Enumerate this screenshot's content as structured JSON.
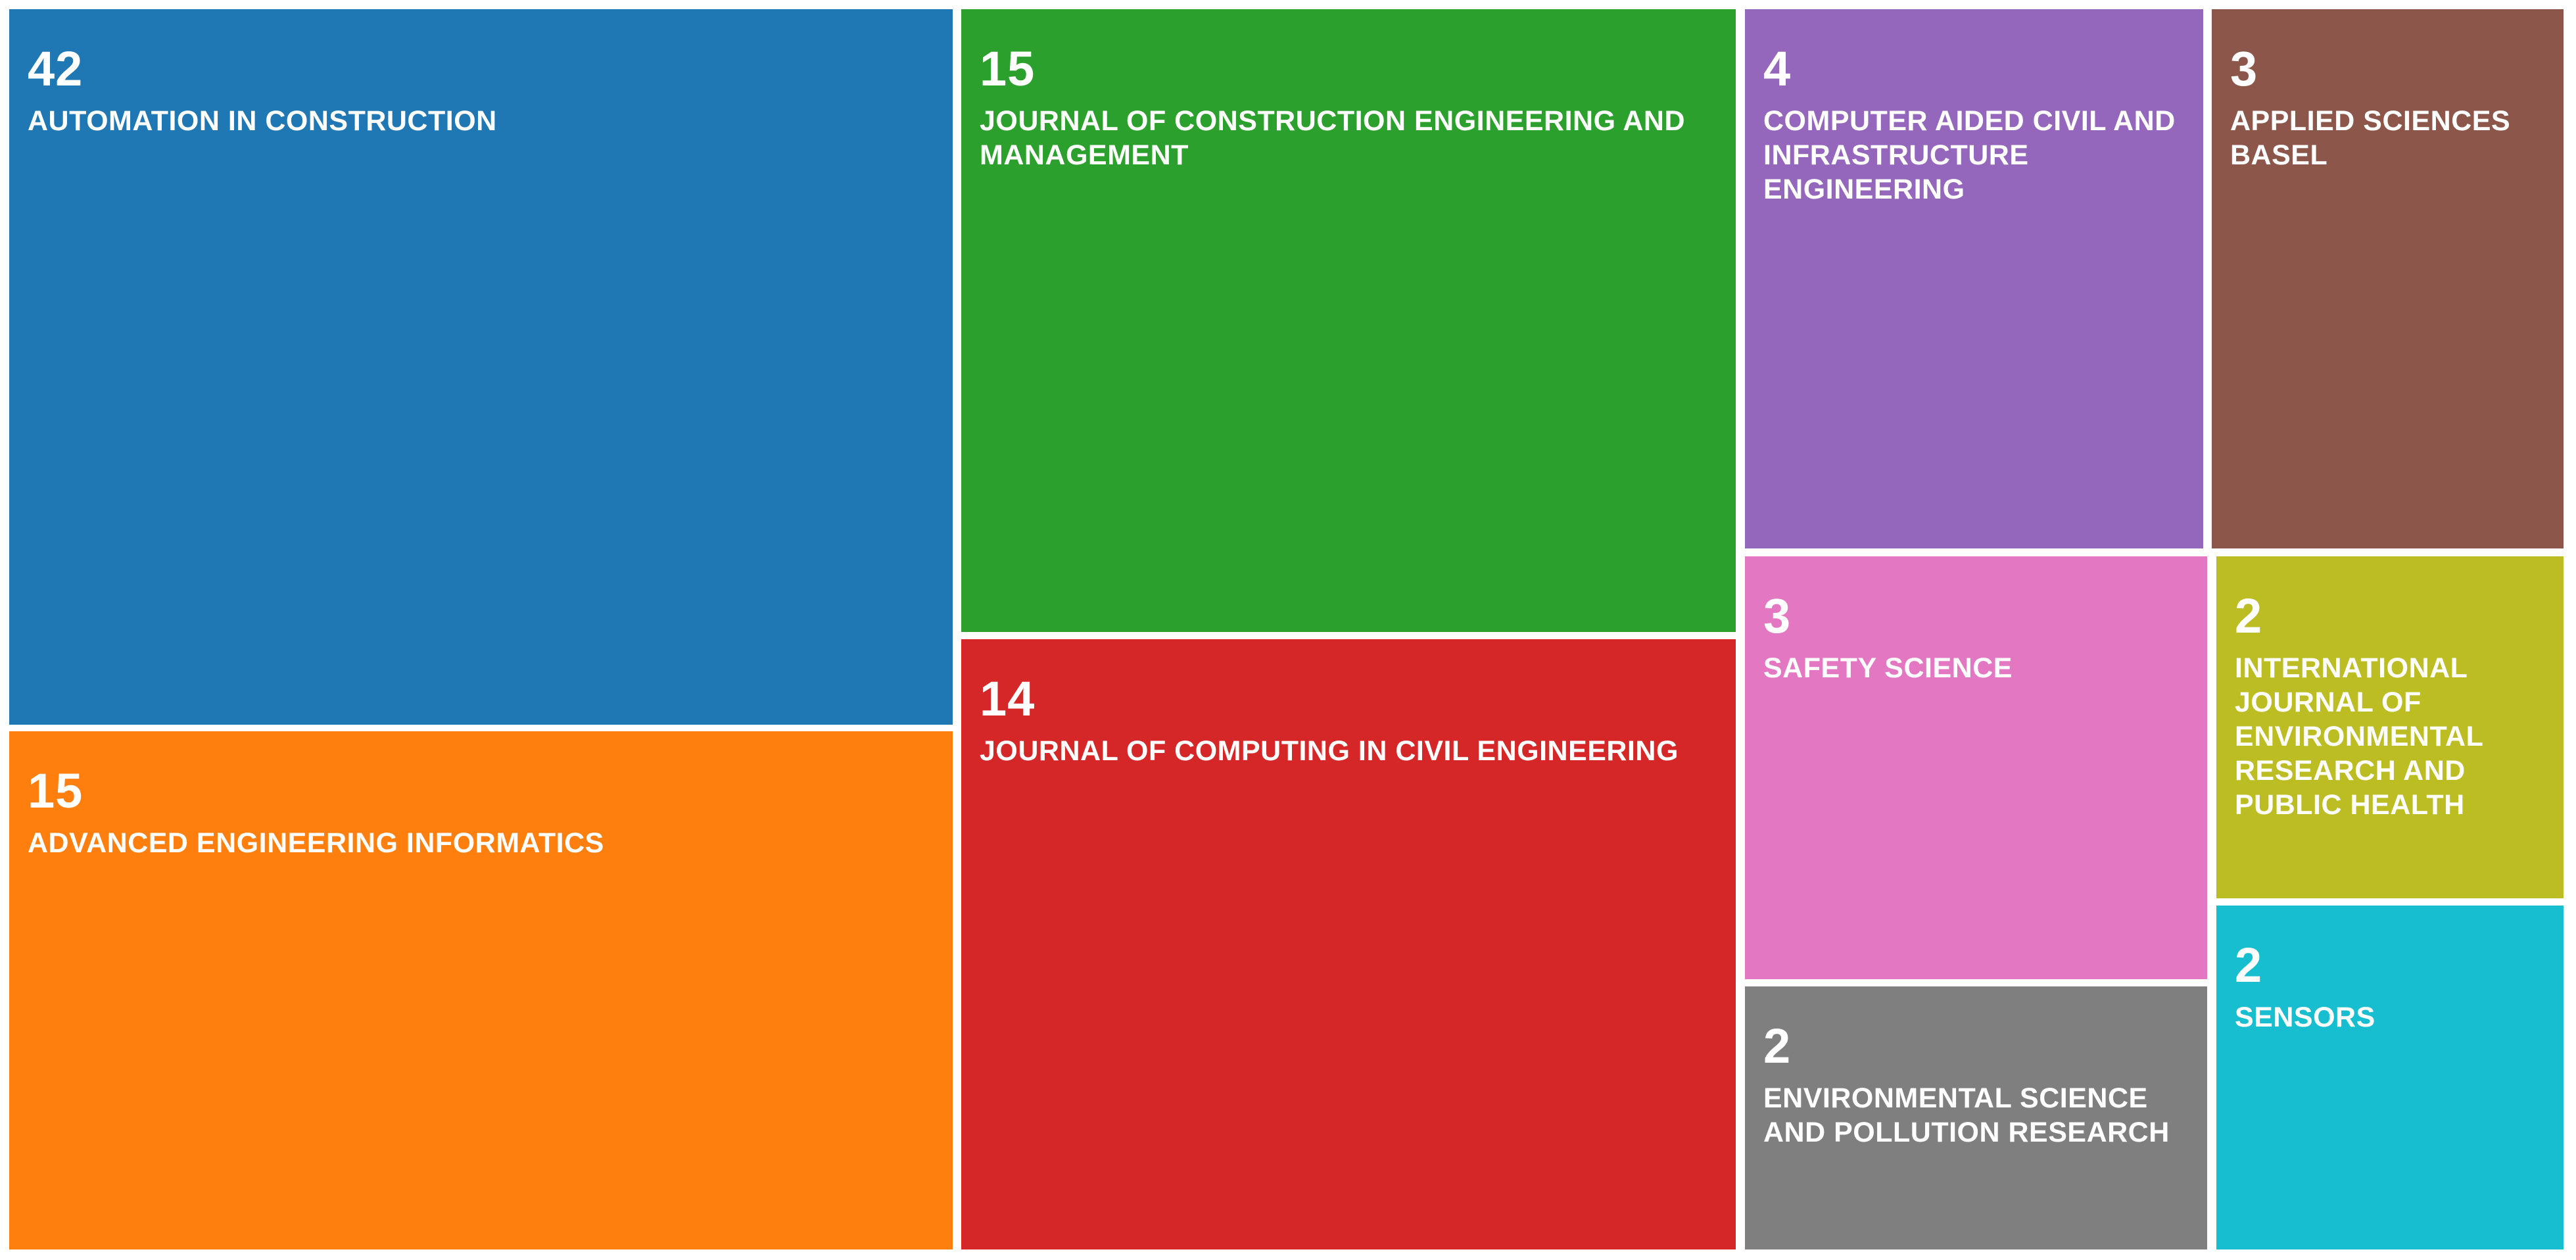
{
  "chart_data": {
    "type": "treemap",
    "items": [
      {
        "label": "AUTOMATION IN CONSTRUCTION",
        "value": 42,
        "color": "#1f77b4"
      },
      {
        "label": "ADVANCED ENGINEERING INFORMATICS",
        "value": 15,
        "color": "#ff7f0e"
      },
      {
        "label": "JOURNAL OF CONSTRUCTION ENGINEERING AND MANAGEMENT",
        "value": 15,
        "color": "#2ca02c"
      },
      {
        "label": "JOURNAL OF COMPUTING IN CIVIL ENGINEERING",
        "value": 14,
        "color": "#d62728"
      },
      {
        "label": "COMPUTER AIDED CIVIL AND INFRASTRUCTURE ENGINEERING",
        "value": 4,
        "color": "#9467bd"
      },
      {
        "label": "APPLIED SCIENCES BASEL",
        "value": 3,
        "color": "#8c564b"
      },
      {
        "label": "SAFETY SCIENCE",
        "value": 3,
        "color": "#e377c2"
      },
      {
        "label": "INTERNATIONAL JOURNAL OF ENVIRONMENTAL RESEARCH AND PUBLIC HEALTH",
        "value": 2,
        "color": "#bcbd22"
      },
      {
        "label": "ENVIRONMENTAL SCIENCE AND POLLUTION RESEARCH",
        "value": 2,
        "color": "#7f7f7f"
      },
      {
        "label": "SENSORS",
        "value": 2,
        "color": "#17becf"
      }
    ]
  }
}
